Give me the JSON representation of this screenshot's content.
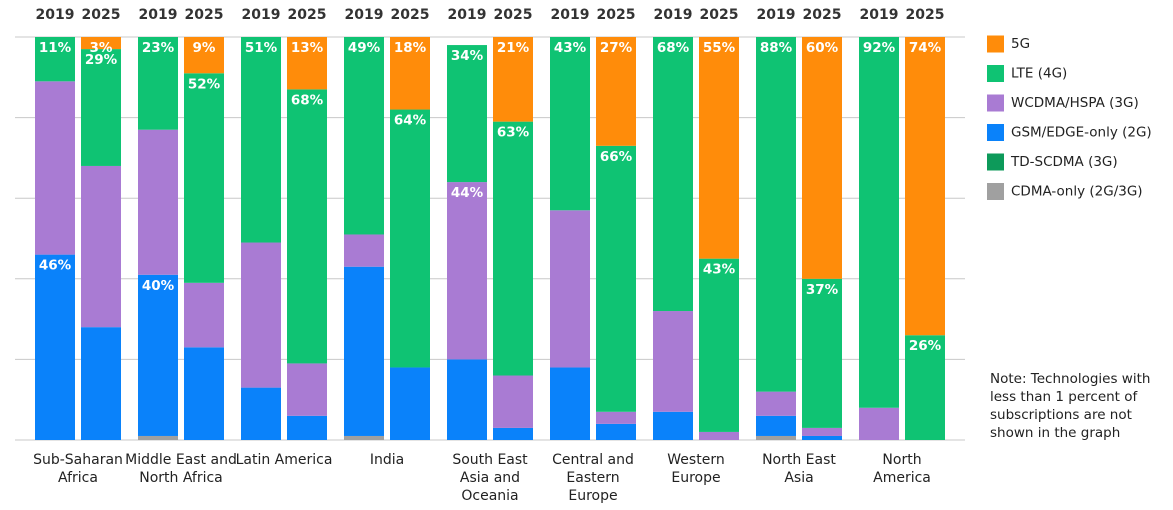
{
  "chart_data": {
    "type": "stacked_bar_100",
    "groups": [
      "Sub-Saharan Africa",
      "Middle East and North Africa",
      "Latin America",
      "India",
      "South East Asia and Oceania",
      "Central and Eastern Europe",
      "Western Europe",
      "North East Asia",
      "North America"
    ],
    "categories": [
      "2019",
      "2025",
      "2019",
      "2025",
      "2019",
      "2025",
      "2019",
      "2025",
      "2019",
      "2025",
      "2019",
      "2025",
      "2019",
      "2025",
      "2019",
      "2025",
      "2019",
      "2025"
    ],
    "series": [
      {
        "name": "5G",
        "color": "#ff8c0a",
        "values": [
          null,
          3,
          null,
          9,
          null,
          13,
          null,
          18,
          null,
          21,
          null,
          27,
          null,
          55,
          null,
          60,
          null,
          74
        ],
        "value_labels": [
          null,
          "3%",
          null,
          "9%",
          null,
          "13%",
          null,
          "18%",
          null,
          "21%",
          null,
          "27%",
          null,
          "55%",
          null,
          "60%",
          null,
          "74%"
        ]
      },
      {
        "name": "LTE (4G)",
        "color": "#0fc373",
        "values": [
          11,
          29,
          23,
          52,
          51,
          68,
          49,
          64,
          34,
          63,
          43,
          66,
          68,
          43,
          88,
          37,
          92,
          26
        ],
        "value_labels": [
          "11%",
          "29%",
          "23%",
          "52%",
          "51%",
          "68%",
          "49%",
          "64%",
          "34%",
          "63%",
          "43%",
          "66%",
          "68%",
          "43%",
          "88%",
          "37%",
          "92%",
          "26%"
        ]
      },
      {
        "name": "WCDMA/HSPA (3G)",
        "color": "#a97bd3",
        "values": [
          43,
          40,
          36,
          16,
          36,
          13,
          8,
          null,
          44,
          13,
          39,
          3,
          25,
          2,
          6,
          2,
          8,
          null
        ],
        "value_labels": [
          null,
          null,
          null,
          null,
          null,
          null,
          null,
          null,
          "44%",
          null,
          null,
          null,
          null,
          null,
          null,
          null,
          null,
          null
        ]
      },
      {
        "name": "GSM/EDGE-only (2G)",
        "color": "#0a82fa",
        "values": [
          46,
          28,
          40,
          23,
          13,
          6,
          42,
          18,
          20,
          3,
          18,
          4,
          7,
          null,
          5,
          1,
          null,
          null
        ],
        "value_labels": [
          "46%",
          null,
          "40%",
          null,
          null,
          null,
          null,
          null,
          null,
          null,
          null,
          null,
          null,
          null,
          null,
          null,
          null,
          null
        ]
      },
      {
        "name": "TD-SCDMA (3G)",
        "color": "#0d9a5a",
        "values": [
          null,
          null,
          null,
          null,
          null,
          null,
          null,
          null,
          null,
          null,
          null,
          null,
          null,
          null,
          null,
          null,
          null,
          null
        ]
      },
      {
        "name": "CDMA-only (2G/3G)",
        "color": "#a0a0a0",
        "values": [
          null,
          null,
          1,
          null,
          null,
          null,
          1,
          null,
          null,
          null,
          null,
          null,
          null,
          null,
          1,
          null,
          null,
          null
        ]
      }
    ],
    "ylim": [
      0,
      100
    ],
    "yticks": [
      0,
      20,
      40,
      60,
      80,
      100
    ],
    "grid": true,
    "note": "Note: Technologies with less than 1 percent of subscriptions are not shown in the graph"
  }
}
